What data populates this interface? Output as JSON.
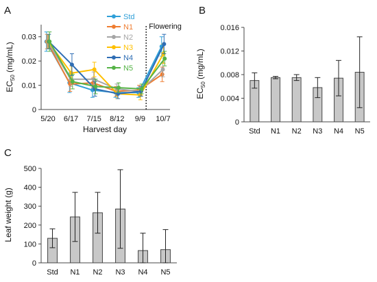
{
  "panels": {
    "a": "A",
    "b": "B",
    "c": "C"
  },
  "colors": {
    "Std": "#2f9fd8",
    "N1": "#ef7d31",
    "N2": "#a5a5a5",
    "N3": "#ffc000",
    "N4": "#2e6db4",
    "N5": "#55b346",
    "bar_fill": "#c8c8c8",
    "bar_stroke": "#444444",
    "axis": "#444444"
  },
  "chart_data": [
    {
      "id": "A",
      "type": "line",
      "xlabel": "Harvest day",
      "ylabel_main": "EC",
      "ylabel_sub": "50",
      "ylabel_unit": " (mg/mL)",
      "ylim": [
        0,
        0.035
      ],
      "yticks": [
        "0",
        "0.01",
        "0.02",
        "0.03"
      ],
      "ytick_values": [
        0,
        0.01,
        0.02,
        0.03
      ],
      "categories": [
        "5/20",
        "6/17",
        "7/15",
        "8/12",
        "9/9",
        "10/7"
      ],
      "annotation": "Flowering",
      "annotation_between": [
        "9/9",
        "10/7"
      ],
      "series": [
        {
          "name": "Std",
          "values": [
            0.028,
            0.011,
            0.008,
            0.007,
            0.007,
            0.026
          ],
          "errors": [
            0.004,
            0.004,
            0.003,
            0.002,
            0.002,
            0.004
          ]
        },
        {
          "name": "N1",
          "values": [
            0.028,
            0.0105,
            0.011,
            0.0075,
            0.008,
            0.0145
          ],
          "errors": [
            0.003,
            0.003,
            0.002,
            0.002,
            0.002,
            0.003
          ]
        },
        {
          "name": "N2",
          "values": [
            0.028,
            0.0125,
            0.0125,
            0.0085,
            0.0075,
            0.0165
          ],
          "errors": [
            0.003,
            0.003,
            0.003,
            0.002,
            0.002,
            0.003
          ]
        },
        {
          "name": "N3",
          "values": [
            0.028,
            0.015,
            0.0165,
            0.0065,
            0.006,
            0.023
          ],
          "errors": [
            0.003,
            0.003,
            0.003,
            0.002,
            0.002,
            0.004
          ]
        },
        {
          "name": "N4",
          "values": [
            0.028,
            0.0185,
            0.0085,
            0.0065,
            0.0075,
            0.027
          ],
          "errors": [
            0.003,
            0.0045,
            0.003,
            0.002,
            0.002,
            0.004
          ]
        },
        {
          "name": "N5",
          "values": [
            0.028,
            0.0115,
            0.0095,
            0.009,
            0.0085,
            0.021
          ],
          "errors": [
            0.004,
            0.003,
            0.003,
            0.002,
            0.002,
            0.003
          ]
        }
      ]
    },
    {
      "id": "B",
      "type": "bar",
      "xlabel": "",
      "ylabel_main": "EC",
      "ylabel_sub": "50",
      "ylabel_unit": " (mg/mL)",
      "ylim": [
        0,
        0.016
      ],
      "yticks": [
        "0",
        "0.004",
        "0.008",
        "0.012",
        "0.016"
      ],
      "ytick_values": [
        0,
        0.004,
        0.008,
        0.012,
        0.016
      ],
      "categories": [
        "Std",
        "N1",
        "N2",
        "N3",
        "N4",
        "N5"
      ],
      "values": [
        0.007,
        0.0075,
        0.0075,
        0.0058,
        0.0074,
        0.0084
      ],
      "errors": [
        0.0013,
        0.0002,
        0.0005,
        0.0017,
        0.003,
        0.006
      ]
    },
    {
      "id": "C",
      "type": "bar",
      "xlabel": "",
      "ylabel_main": "Leaf weight (g)",
      "ylabel_sub": "",
      "ylabel_unit": "",
      "ylim": [
        0,
        500
      ],
      "yticks": [
        "0",
        "100",
        "200",
        "300",
        "400",
        "500"
      ],
      "ytick_values": [
        0,
        100,
        200,
        300,
        400,
        500
      ],
      "categories": [
        "Std",
        "N1",
        "N2",
        "N3",
        "N4",
        "N5"
      ],
      "values": [
        130,
        243,
        265,
        285,
        65,
        70
      ],
      "errors": [
        50,
        130,
        108,
        208,
        92,
        106
      ]
    }
  ]
}
